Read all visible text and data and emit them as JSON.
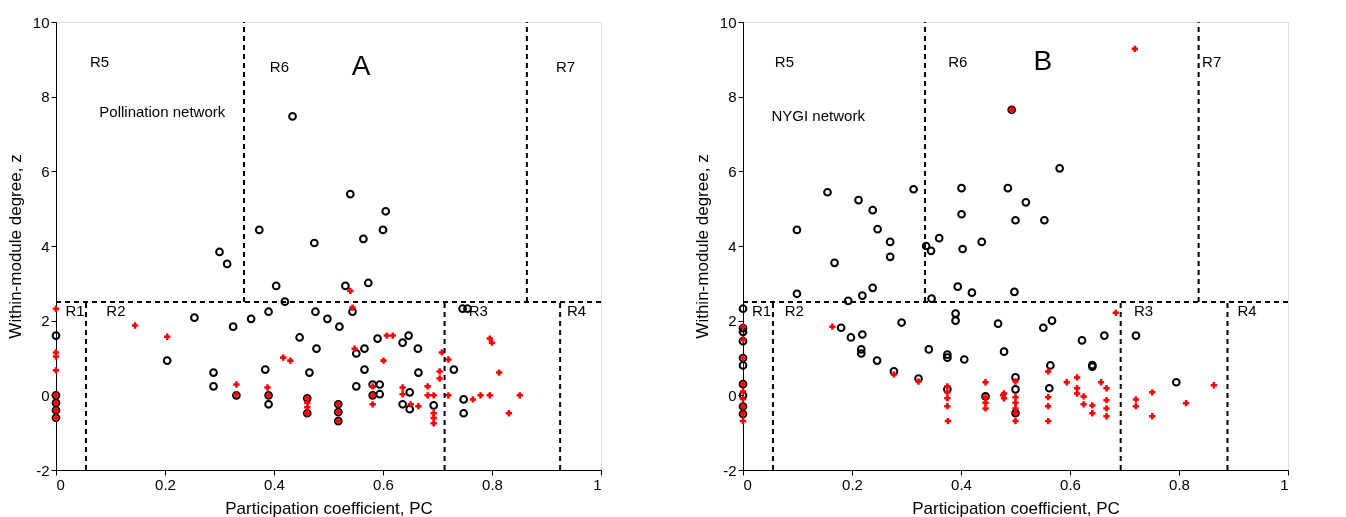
{
  "chart_data": [
    {
      "type": "scatter",
      "xlabel": "Participation coefficient, PC",
      "ylabel": "Within-module degree, z",
      "xlim": [
        0,
        1
      ],
      "ylim": [
        -2,
        10
      ],
      "xticks": [
        0,
        0.2,
        0.4,
        0.6,
        0.8,
        1
      ],
      "yticks": [
        -2,
        0,
        2,
        4,
        6,
        8,
        10
      ],
      "grid": false,
      "legend": false,
      "series": [
        {
          "marker": "circle",
          "color": "#000000",
          "x": [
            0,
            0,
            0,
            0,
            0,
            0.434,
            0.54,
            0.605,
            0.6,
            0.564,
            0.373,
            0.474,
            0.3,
            0.314,
            0.404,
            0.531,
            0.573,
            0.42,
            0.39,
            0.476,
            0.544,
            0.746,
            0.755,
            0.358,
            0.498,
            0.254,
            0.325,
            0.204,
            0.289,
            0.289,
            0.384,
            0.39,
            0.39,
            0.447,
            0.478,
            0.465,
            0.461,
            0.461,
            0.331,
            0.52,
            0.59,
            0.647,
            0.636,
            0.664,
            0.566,
            0.551,
            0.566,
            0.665,
            0.551,
            0.581,
            0.594,
            0.594,
            0.581,
            0.649,
            0.636,
            0.649,
            0.693,
            0.73,
            0.748,
            0.748,
            0.518,
            0.518,
            0.518
          ],
          "values": [
            1.6,
            0,
            -0.2,
            -0.4,
            -0.6,
            7.47,
            5.39,
            4.93,
            4.43,
            4.19,
            4.43,
            4.08,
            3.84,
            3.52,
            2.93,
            2.93,
            3.01,
            2.51,
            2.24,
            2.24,
            2.24,
            2.32,
            2.32,
            2.05,
            2.05,
            2.08,
            1.84,
            0.93,
            0.61,
            0.24,
            0.69,
            0,
            -0.24,
            1.55,
            1.25,
            0.61,
            -0.08,
            -0.48,
            0,
            1.84,
            1.52,
            1.6,
            1.41,
            1.25,
            1.25,
            1.12,
            0.69,
            0.61,
            0.24,
            0.29,
            0.29,
            0.03,
            0,
            0.08,
            -0.24,
            -0.37,
            -0.27,
            0.69,
            -0.11,
            -0.48,
            -0.24,
            -0.45,
            -0.69
          ]
        },
        {
          "marker": "cross",
          "color": "#ff0000",
          "x": [
            0,
            0,
            0,
            0,
            0,
            0,
            0,
            0,
            0.145,
            0.204,
            0.331,
            0.331,
            0.388,
            0.39,
            0.417,
            0.43,
            0.461,
            0.461,
            0.461,
            0.461,
            0.54,
            0.544,
            0.607,
            0.618,
            0.548,
            0.601,
            0.636,
            0.636,
            0.651,
            0.665,
            0.682,
            0.682,
            0.693,
            0.693,
            0.693,
            0.693,
            0.704,
            0.704,
            0.708,
            0.72,
            0.72,
            0.581,
            0.581,
            0.581,
            0.765,
            0.779,
            0.796,
            0.796,
            0.8,
            0.813,
            0.831,
            0.851,
            0.518,
            0.518,
            0.518
          ],
          "values": [
            2.32,
            1.15,
            1.04,
            0.67,
            0,
            -0.2,
            -0.4,
            -0.6,
            1.87,
            1.57,
            0.29,
            0.03,
            0.21,
            0,
            1.01,
            0.93,
            -0.08,
            -0.2,
            -0.32,
            -0.48,
            2.8,
            2.35,
            1.6,
            1.6,
            1.25,
            0.93,
            0.21,
            0.03,
            -0.24,
            -0.29,
            0.24,
            0,
            0,
            -0.48,
            -0.61,
            -0.75,
            0.64,
            0.45,
            1.15,
            0.96,
            0,
            0.24,
            0,
            -0.24,
            -0.11,
            0,
            0,
            1.52,
            1.41,
            0.61,
            -0.48,
            0,
            -0.24,
            -0.45,
            -0.69
          ]
        },
        {
          "type": "line",
          "line_style": "dashed",
          "color": "#000000",
          "x": [
            0.055,
            0.055
          ],
          "values": [
            -2,
            2.5
          ]
        },
        {
          "type": "line",
          "line_style": "dashed",
          "color": "#000000",
          "x": [
            0,
            1
          ],
          "values": [
            2.5,
            2.5
          ]
        },
        {
          "type": "line",
          "line_style": "dashed",
          "color": "#000000",
          "x": [
            0.345,
            0.345
          ],
          "values": [
            2.5,
            10
          ]
        },
        {
          "type": "line",
          "line_style": "dashed",
          "color": "#000000",
          "x": [
            0.864,
            0.864
          ],
          "values": [
            2.5,
            10
          ]
        },
        {
          "type": "line",
          "line_style": "dashed",
          "color": "#000000",
          "x": [
            0.713,
            0.713
          ],
          "values": [
            -2,
            2.5
          ]
        },
        {
          "type": "line",
          "line_style": "dashed",
          "color": "#000000",
          "x": [
            0.925,
            0.925
          ],
          "values": [
            -2,
            2.5
          ]
        }
      ],
      "annotations": [
        "R5",
        "R6",
        "A",
        "R7",
        "Pollination network",
        "R1",
        "R2",
        "R3",
        "R4"
      ]
    },
    {
      "type": "scatter",
      "xlabel": "Participation coefficient, PC",
      "ylabel": "Within-module degree, z",
      "xlim": [
        0,
        1
      ],
      "ylim": [
        -2,
        10
      ],
      "xticks": [
        0,
        0.2,
        0.4,
        0.6,
        0.8,
        1
      ],
      "yticks": [
        -2,
        0,
        2,
        4,
        6,
        8,
        10
      ],
      "grid": false,
      "legend": false,
      "series": [
        {
          "marker": "circle",
          "color": "#000000",
          "x": [
            0.493,
            0.581,
            0.486,
            0.401,
            0.313,
            0.155,
            0.212,
            0.519,
            0.238,
            0.401,
            0.5,
            0.553,
            0.099,
            0.247,
            0.36,
            0.27,
            0.438,
            0.336,
            0.345,
            0.403,
            0.27,
            0.168,
            0.099,
            0.238,
            0.219,
            0.193,
            0.394,
            0.42,
            0.498,
            0.346,
            0,
            0.39,
            0.39,
            0.18,
            0.198,
            0.219,
            0.217,
            0.217,
            0.246,
            0.277,
            0.322,
            0.291,
            0.341,
            0.375,
            0.375,
            0.406,
            0.468,
            0.479,
            0.375,
            0.445,
            0.551,
            0.567,
            0.622,
            0.663,
            0.721,
            0.564,
            0.641,
            0.641,
            0.5,
            0.5,
            0.5,
            0.562,
            0.795,
            0,
            0,
            0,
            0,
            0,
            0,
            0,
            0,
            0
          ],
          "values": [
            7.65,
            6.08,
            5.55,
            5.55,
            5.52,
            5.44,
            5.23,
            5.17,
            4.96,
            4.85,
            4.69,
            4.69,
            4.43,
            4.45,
            4.21,
            4.11,
            4.11,
            4.0,
            3.87,
            3.92,
            3.71,
            3.55,
            2.72,
            2.88,
            2.67,
            2.53,
            2.91,
            2.75,
            2.77,
            2.59,
            2.32,
            2.19,
            2.0,
            1.81,
            1.55,
            1.63,
            1.23,
            1.12,
            0.93,
            0.64,
            0.45,
            1.95,
            1.23,
            1.09,
            1.01,
            0.96,
            1.92,
            1.17,
            0.16,
            -0.03,
            1.81,
            2.0,
            1.47,
            1.6,
            1.6,
            0.8,
            0.77,
            0.81,
            0.48,
            0.16,
            -0.48,
            0.19,
            0.35,
            1.8,
            1.7,
            1.45,
            1.0,
            0.8,
            0.3,
            0,
            -0.3,
            -0.5
          ]
        },
        {
          "marker": "cross",
          "color": "#ff0000",
          "x": [
            0.719,
            0.493,
            0.684,
            0.164,
            0.277,
            0.322,
            0.375,
            0.375,
            0.375,
            0.375,
            0.376,
            0.445,
            0.445,
            0.445,
            0.445,
            0.477,
            0,
            0,
            0,
            0,
            0,
            0,
            0,
            0,
            0,
            0.479,
            0.479,
            0.5,
            0.5,
            0.5,
            0.5,
            0.5,
            0.5,
            0.56,
            0.56,
            0.56,
            0.56,
            0.594,
            0.613,
            0.613,
            0.613,
            0.625,
            0.625,
            0.641,
            0.641,
            0.657,
            0.667,
            0.667,
            0.667,
            0.667,
            0.721,
            0.721,
            0.751,
            0.751,
            0.813,
            0.864
          ],
          "values": [
            9.28,
            7.65,
            2.21,
            1.84,
            0.56,
            0.37,
            0.24,
            0.08,
            -0.08,
            -0.29,
            -0.69,
            0.35,
            -0.05,
            -0.2,
            -0.35,
            0,
            1.84,
            1.49,
            1.0,
            0.3,
            0.1,
            -0.1,
            -0.3,
            -0.5,
            -0.69,
            0.05,
            -0.08,
            0.37,
            -0.05,
            -0.2,
            -0.35,
            -0.48,
            -0.69,
            0.64,
            -0.05,
            -0.29,
            -0.69,
            0.35,
            0.48,
            0.19,
            0.05,
            -0.03,
            -0.24,
            -0.27,
            -0.48,
            0.35,
            0.19,
            -0.13,
            -0.35,
            -0.56,
            -0.11,
            -0.29,
            0.08,
            -0.56,
            -0.21,
            0.27
          ]
        },
        {
          "type": "line",
          "line_style": "dashed",
          "color": "#000000",
          "x": [
            0.055,
            0.055
          ],
          "values": [
            -2,
            2.5
          ]
        },
        {
          "type": "line",
          "line_style": "dashed",
          "color": "#000000",
          "x": [
            0,
            1
          ],
          "values": [
            2.5,
            2.5
          ]
        },
        {
          "type": "line",
          "line_style": "dashed",
          "color": "#000000",
          "x": [
            0.334,
            0.334
          ],
          "values": [
            2.5,
            10
          ]
        },
        {
          "type": "line",
          "line_style": "dashed",
          "color": "#000000",
          "x": [
            0.836,
            0.836
          ],
          "values": [
            2.5,
            10
          ]
        },
        {
          "type": "line",
          "line_style": "dashed",
          "color": "#000000",
          "x": [
            0.693,
            0.693
          ],
          "values": [
            -2,
            2.5
          ]
        },
        {
          "type": "line",
          "line_style": "dashed",
          "color": "#000000",
          "x": [
            0.889,
            0.889
          ],
          "values": [
            -2,
            2.5
          ]
        }
      ],
      "annotations": [
        "R5",
        "R6",
        "B",
        "R7",
        "NYGI network",
        "R1",
        "R2",
        "R3",
        "R4"
      ]
    }
  ]
}
